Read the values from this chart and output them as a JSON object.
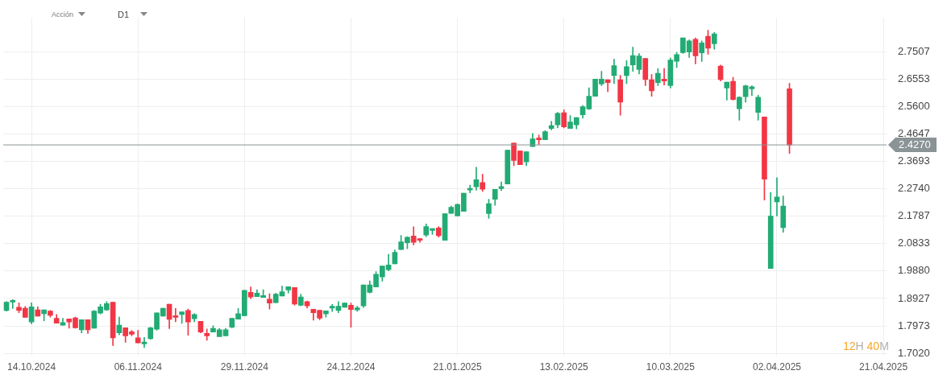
{
  "chart_data": {
    "type": "candlestick",
    "subtitle": "Acción",
    "annotations": [
      "D1",
      "12H 40M"
    ],
    "categories": [
      null,
      null,
      null,
      null,
      "14.10.2024",
      null,
      null,
      null,
      null,
      null,
      null,
      null,
      null,
      null,
      null,
      null,
      null,
      null,
      null,
      null,
      null,
      "06.11.2024",
      null,
      null,
      null,
      null,
      null,
      null,
      null,
      null,
      null,
      null,
      null,
      null,
      null,
      null,
      null,
      null,
      "29.11.2024",
      null,
      null,
      null,
      null,
      null,
      null,
      null,
      null,
      null,
      null,
      null,
      null,
      null,
      null,
      null,
      null,
      "24.12.2024",
      null,
      null,
      null,
      null,
      null,
      null,
      null,
      null,
      null,
      null,
      null,
      null,
      null,
      null,
      null,
      null,
      "21.01.2025",
      null,
      null,
      null,
      null,
      null,
      null,
      null,
      null,
      null,
      null,
      null,
      null,
      null,
      null,
      null,
      null,
      "13.02.2025",
      null,
      null,
      null,
      null,
      null,
      null,
      null,
      null,
      null,
      null,
      null,
      null,
      null,
      null,
      null,
      null,
      "10.03.2025",
      null,
      null,
      null,
      null,
      null,
      null,
      null,
      null,
      null,
      null,
      null,
      null,
      null,
      null,
      null,
      null,
      "02.04.2025",
      null,
      null,
      null,
      null,
      null,
      null,
      null,
      null,
      null,
      null,
      null,
      null,
      null,
      null,
      null,
      null,
      "21.04.2025"
    ],
    "ohlc": [
      [
        1.851,
        1.882,
        1.849,
        1.88
      ],
      [
        1.88,
        1.889,
        1.858,
        1.886
      ],
      [
        1.862,
        1.878,
        1.843,
        1.851
      ],
      [
        1.859,
        1.865,
        1.827,
        1.827
      ],
      [
        1.811,
        1.878,
        1.805,
        1.864
      ],
      [
        1.853,
        1.864,
        1.831,
        1.831
      ],
      [
        1.84,
        1.853,
        1.815,
        1.853
      ],
      [
        1.849,
        1.851,
        1.828,
        1.834
      ],
      [
        1.824,
        1.837,
        1.807,
        1.807
      ],
      [
        1.8,
        1.824,
        1.8,
        1.809
      ],
      [
        1.822,
        1.822,
        1.789,
        1.811
      ],
      [
        1.825,
        1.828,
        1.789,
        1.791
      ],
      [
        1.784,
        1.819,
        1.773,
        1.819
      ],
      [
        1.819,
        1.819,
        1.771,
        1.784
      ],
      [
        1.789,
        1.851,
        1.789,
        1.849
      ],
      [
        1.842,
        1.873,
        1.839,
        1.864
      ],
      [
        1.853,
        1.882,
        1.851,
        1.875
      ],
      [
        1.88,
        1.88,
        1.729,
        1.756
      ],
      [
        1.773,
        1.828,
        1.766,
        1.8
      ],
      [
        1.791,
        1.791,
        1.74,
        1.763
      ],
      [
        1.777,
        1.782,
        1.763,
        1.768
      ],
      [
        1.756,
        1.782,
        1.738,
        1.738
      ],
      [
        1.735,
        1.757,
        1.722,
        1.741
      ],
      [
        1.753,
        1.793,
        1.751,
        1.791
      ],
      [
        1.786,
        1.843,
        1.782,
        1.843
      ],
      [
        1.831,
        1.859,
        1.831,
        1.859
      ],
      [
        1.873,
        1.873,
        1.788,
        1.82
      ],
      [
        1.833,
        1.858,
        1.812,
        1.827
      ],
      [
        1.837,
        1.846,
        1.806,
        1.846
      ],
      [
        1.851,
        1.856,
        1.765,
        1.811
      ],
      [
        1.822,
        1.84,
        1.812,
        1.837
      ],
      [
        1.813,
        1.813,
        1.773,
        1.776
      ],
      [
        1.771,
        1.787,
        1.747,
        1.763
      ],
      [
        1.776,
        1.798,
        1.776,
        1.789
      ],
      [
        1.76,
        1.789,
        1.76,
        1.784
      ],
      [
        1.763,
        1.789,
        1.763,
        1.784
      ],
      [
        1.793,
        1.824,
        1.791,
        1.824
      ],
      [
        1.821,
        1.858,
        1.821,
        1.84
      ],
      [
        1.833,
        1.921,
        1.832,
        1.921
      ],
      [
        1.914,
        1.933,
        1.892,
        1.898
      ],
      [
        1.899,
        1.923,
        1.899,
        1.911
      ],
      [
        1.896,
        1.923,
        1.896,
        1.903
      ],
      [
        1.89,
        1.909,
        1.856,
        1.877
      ],
      [
        1.878,
        1.911,
        1.878,
        1.908
      ],
      [
        1.901,
        1.936,
        1.901,
        1.916
      ],
      [
        1.922,
        1.934,
        1.912,
        1.934
      ],
      [
        1.931,
        1.931,
        1.87,
        1.873
      ],
      [
        1.869,
        1.908,
        1.867,
        1.898
      ],
      [
        1.882,
        1.884,
        1.859,
        1.867
      ],
      [
        1.855,
        1.855,
        1.817,
        1.843
      ],
      [
        1.852,
        1.852,
        1.819,
        1.824
      ],
      [
        1.839,
        1.85,
        1.828,
        1.85
      ],
      [
        1.859,
        1.872,
        1.847,
        1.866
      ],
      [
        1.851,
        1.882,
        1.843,
        1.866
      ],
      [
        1.862,
        1.878,
        1.862,
        1.877
      ],
      [
        1.869,
        1.877,
        1.793,
        1.854
      ],
      [
        1.853,
        1.866,
        1.848,
        1.86
      ],
      [
        1.867,
        1.94,
        1.861,
        1.94
      ],
      [
        1.914,
        1.954,
        1.912,
        1.94
      ],
      [
        1.933,
        1.986,
        1.933,
        1.977
      ],
      [
        1.968,
        2.006,
        1.953,
        2.006
      ],
      [
        1.993,
        2.046,
        1.989,
        2.009
      ],
      [
        2.013,
        2.062,
        2.013,
        2.053
      ],
      [
        2.063,
        2.112,
        2.063,
        2.09
      ],
      [
        2.087,
        2.108,
        2.066,
        2.106
      ],
      [
        2.11,
        2.142,
        2.079,
        2.088
      ],
      [
        2.101,
        2.101,
        2.088,
        2.095
      ],
      [
        2.113,
        2.152,
        2.108,
        2.143
      ],
      [
        2.129,
        2.136,
        2.115,
        2.136
      ],
      [
        2.138,
        2.143,
        2.106,
        2.111
      ],
      [
        2.095,
        2.188,
        2.095,
        2.188
      ],
      [
        2.189,
        2.214,
        2.188,
        2.21
      ],
      [
        2.18,
        2.222,
        2.18,
        2.22
      ],
      [
        2.196,
        2.259,
        2.196,
        2.259
      ],
      [
        2.27,
        2.287,
        2.26,
        2.276
      ],
      [
        2.281,
        2.349,
        2.269,
        2.306
      ],
      [
        2.296,
        2.325,
        2.265,
        2.273
      ],
      [
        2.188,
        2.238,
        2.171,
        2.223
      ],
      [
        2.238,
        2.272,
        2.217,
        2.272
      ],
      [
        2.275,
        2.298,
        2.268,
        2.282
      ],
      [
        2.291,
        2.409,
        2.291,
        2.409
      ],
      [
        2.433,
        2.433,
        2.355,
        2.373
      ],
      [
        2.406,
        2.406,
        2.358,
        2.358
      ],
      [
        2.368,
        2.403,
        2.355,
        2.403
      ],
      [
        2.421,
        2.467,
        2.421,
        2.448
      ],
      [
        2.451,
        2.461,
        2.428,
        2.445
      ],
      [
        2.445,
        2.477,
        2.445,
        2.473
      ],
      [
        2.484,
        2.509,
        2.479,
        2.494
      ],
      [
        2.497,
        2.54,
        2.486,
        2.537
      ],
      [
        2.539,
        2.549,
        2.486,
        2.49
      ],
      [
        2.484,
        2.529,
        2.484,
        2.507
      ],
      [
        2.497,
        2.522,
        2.483,
        2.522
      ],
      [
        2.532,
        2.564,
        2.52,
        2.56
      ],
      [
        2.552,
        2.626,
        2.55,
        2.596
      ],
      [
        2.596,
        2.656,
        2.596,
        2.656
      ],
      [
        2.639,
        2.683,
        2.633,
        2.656
      ],
      [
        2.654,
        2.654,
        2.612,
        2.644
      ],
      [
        2.668,
        2.725,
        2.64,
        2.703
      ],
      [
        2.654,
        2.669,
        2.53,
        2.576
      ],
      [
        2.668,
        2.72,
        2.64,
        2.699
      ],
      [
        2.705,
        2.767,
        2.683,
        2.738
      ],
      [
        2.689,
        2.745,
        2.674,
        2.736
      ],
      [
        2.728,
        2.728,
        2.633,
        2.654
      ],
      [
        2.654,
        2.672,
        2.596,
        2.615
      ],
      [
        2.644,
        2.692,
        2.633,
        2.676
      ],
      [
        2.656,
        2.693,
        2.635,
        2.649
      ],
      [
        2.633,
        2.729,
        2.625,
        2.722
      ],
      [
        2.718,
        2.749,
        2.696,
        2.741
      ],
      [
        2.748,
        2.799,
        2.745,
        2.799
      ],
      [
        2.75,
        2.792,
        2.731,
        2.789
      ],
      [
        2.794,
        2.799,
        2.709,
        2.737
      ],
      [
        2.747,
        2.789,
        2.717,
        2.782
      ],
      [
        2.805,
        2.826,
        2.742,
        2.763
      ],
      [
        2.779,
        2.818,
        2.76,
        2.813
      ],
      [
        2.701,
        2.705,
        2.649,
        2.654
      ],
      [
        2.625,
        2.645,
        2.583,
        2.645
      ],
      [
        2.648,
        2.662,
        2.583,
        2.585
      ],
      [
        2.553,
        2.595,
        2.513,
        2.593
      ],
      [
        2.595,
        2.635,
        2.576,
        2.633
      ],
      [
        2.622,
        2.633,
        2.598,
        2.629
      ],
      [
        2.54,
        2.6,
        2.513,
        2.593
      ],
      [
        2.524,
        2.524,
        2.235,
        2.308
      ],
      [
        1.997,
        2.262,
        1.997,
        2.179
      ],
      [
        2.229,
        2.313,
        2.18,
        2.246
      ],
      [
        2.139,
        2.249,
        2.123,
        2.214
      ],
      [
        2.622,
        2.641,
        2.397,
        2.427
      ],
      null,
      null,
      null,
      null,
      null,
      null,
      null,
      null,
      null,
      null,
      null,
      null,
      null,
      null,
      null
    ],
    "colors": [
      "#22ab74",
      "#22ab74",
      "#f23645",
      "#f23645",
      "#22ab74",
      "#f23645",
      "#22ab74",
      "#f23645",
      "#f23645",
      "#22ab74",
      "#f23645",
      "#f23645",
      "#22ab74",
      "#f23645",
      "#22ab74",
      "#22ab74",
      "#22ab74",
      "#f23645",
      "#22ab74",
      "#f23645",
      "#f23645",
      "#f23645",
      "#22ab74",
      "#22ab74",
      "#22ab74",
      "#22ab74",
      "#f23645",
      "#f23645",
      "#22ab74",
      "#f23645",
      "#22ab74",
      "#f23645",
      "#f23645",
      "#22ab74",
      "#22ab74",
      "#22ab74",
      "#22ab74",
      "#22ab74",
      "#22ab74",
      "#f23645",
      "#22ab74",
      "#22ab74",
      "#f23645",
      "#22ab74",
      "#22ab74",
      "#22ab74",
      "#f23645",
      "#22ab74",
      "#f23645",
      "#f23645",
      "#f23645",
      "#22ab74",
      "#22ab74",
      "#22ab74",
      "#22ab74",
      "#f23645",
      "#22ab74",
      "#22ab74",
      "#22ab74",
      "#22ab74",
      "#22ab74",
      "#22ab74",
      "#22ab74",
      "#22ab74",
      "#22ab74",
      "#f23645",
      "#f23645",
      "#22ab74",
      "#22ab74",
      "#f23645",
      "#22ab74",
      "#22ab74",
      "#22ab74",
      "#22ab74",
      "#22ab74",
      "#22ab74",
      "#f23645",
      "#22ab74",
      "#22ab74",
      "#22ab74",
      "#22ab74",
      "#f23645",
      "#f23645",
      "#22ab74",
      "#22ab74",
      "#f23645",
      "#22ab74",
      "#22ab74",
      "#22ab74",
      "#f23645",
      "#22ab74",
      "#22ab74",
      "#22ab74",
      "#22ab74",
      "#22ab74",
      "#22ab74",
      "#f23645",
      "#22ab74",
      "#f23645",
      "#22ab74",
      "#22ab74",
      "#22ab74",
      "#f23645",
      "#f23645",
      "#22ab74",
      "#f23645",
      "#22ab74",
      "#22ab74",
      "#22ab74",
      "#22ab74",
      "#f23645",
      "#22ab74",
      "#f23645",
      "#22ab74",
      "#f23645",
      "#22ab74",
      "#f23645",
      "#22ab74",
      "#22ab74",
      "#22ab74",
      "#22ab74",
      "#f23645",
      "#22ab74",
      "#22ab74",
      "#22ab74",
      "#f23645",
      null,
      null,
      null,
      null,
      null,
      null,
      null,
      null,
      null,
      null,
      null,
      null,
      null,
      null,
      null
    ],
    "ylim": [
      1.695,
      2.87
    ],
    "yticks": [
      {
        "value": 1.702,
        "label": "1.7020"
      },
      {
        "value": 1.7973,
        "label": "1.7973"
      },
      {
        "value": 1.8927,
        "label": "1.8927"
      },
      {
        "value": 1.988,
        "label": "1.9880"
      },
      {
        "value": 2.0833,
        "label": "2.0833"
      },
      {
        "value": 2.1787,
        "label": "2.1787"
      },
      {
        "value": 2.274,
        "label": "2.2740"
      },
      {
        "value": 2.3693,
        "label": "2.3693"
      },
      {
        "value": 2.4647,
        "label": "2.4647"
      },
      {
        "value": 2.56,
        "label": "2.5600"
      },
      {
        "value": 2.6553,
        "label": "2.6553"
      },
      {
        "value": 2.7507,
        "label": "2.7507"
      }
    ],
    "ref_lines": [
      {
        "axis": "y",
        "value": 2.427,
        "label": "2.4270",
        "color": "#8a9396"
      }
    ],
    "grid": true,
    "legend": false
  }
}
